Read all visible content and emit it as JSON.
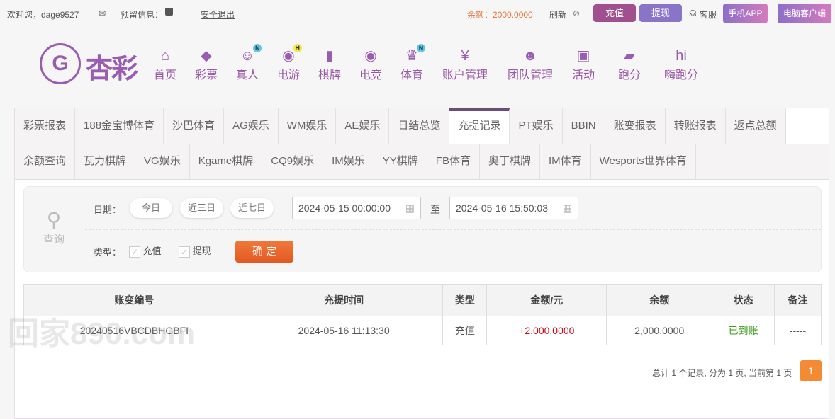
{
  "topbar": {
    "welcome": "欢迎您，dage9527",
    "reserved_info": "预留信息：",
    "logout": "安全退出",
    "balance": "余额：2000.0000",
    "refresh": "刷新",
    "deposit": "充值",
    "withdraw": "提现",
    "service": "客服",
    "mobile_app": "手机APP",
    "pc_client": "电脑客户端"
  },
  "logo": {
    "text": "杏彩"
  },
  "nav": [
    {
      "label": "首页",
      "icon": "home-icon"
    },
    {
      "label": "彩票",
      "icon": "ticket-icon"
    },
    {
      "label": "真人",
      "icon": "live-dealer-icon",
      "badge": "N"
    },
    {
      "label": "电游",
      "icon": "gamepad-icon",
      "badge": "H"
    },
    {
      "label": "棋牌",
      "icon": "cards-icon"
    },
    {
      "label": "电竞",
      "icon": "gamepad-icon"
    },
    {
      "label": "体育",
      "icon": "trophy-icon",
      "badge": "N"
    },
    {
      "label": "账户管理",
      "icon": "yen-coin-icon"
    },
    {
      "label": "团队管理",
      "icon": "team-icon"
    },
    {
      "label": "活动",
      "icon": "gift-icon"
    },
    {
      "label": "跑分",
      "icon": "rhino-icon"
    },
    {
      "label": "嗨跑分",
      "icon": "hi-icon"
    }
  ],
  "tabs_row1": [
    "彩票报表",
    "188金宝博体育",
    "沙巴体育",
    "AG娱乐",
    "WM娱乐",
    "AE娱乐",
    "日结总览",
    "充提记录",
    "PT娱乐",
    "BBIN",
    "账变报表",
    "转账报表",
    "返点总额"
  ],
  "tabs_row2": [
    "余额查询",
    "瓦力棋牌",
    "VG娱乐",
    "Kgame棋牌",
    "CQ9娱乐",
    "IM娱乐",
    "YY棋牌",
    "FB体育",
    "奥丁棋牌",
    "IM体育",
    "Wesports世界体育"
  ],
  "active_tab": "充提记录",
  "filter": {
    "query_label": "查询",
    "date_label": "日期：",
    "today": "今日",
    "last3": "近三日",
    "last7": "近七日",
    "start": "2024-05-15 00:00:00",
    "to": "至",
    "end": "2024-05-16 15:50:03",
    "type_label": "类型：",
    "type_deposit": "充值",
    "type_withdraw": "提现",
    "confirm": "确 定"
  },
  "table": {
    "headers": [
      "账变编号",
      "充提时间",
      "类型",
      "金额/元",
      "余额",
      "状态",
      "备注"
    ],
    "rows": [
      [
        "20240516VBCDBHGBFI",
        "2024-05-16 11:13:30",
        "充值",
        "+2,000.0000",
        "2,000.0000",
        "已到账",
        "-----"
      ]
    ]
  },
  "pagination": {
    "summary": "总计 1 个记录, 分为 1 页, 当前第 1 页",
    "current": "1"
  },
  "watermark": "回家890.com",
  "colors": {
    "brand": "#9a5cb0",
    "accent_orange": "#f07a2a",
    "positive_amount": "#d0021b",
    "status_ok": "#3a9a1a"
  }
}
